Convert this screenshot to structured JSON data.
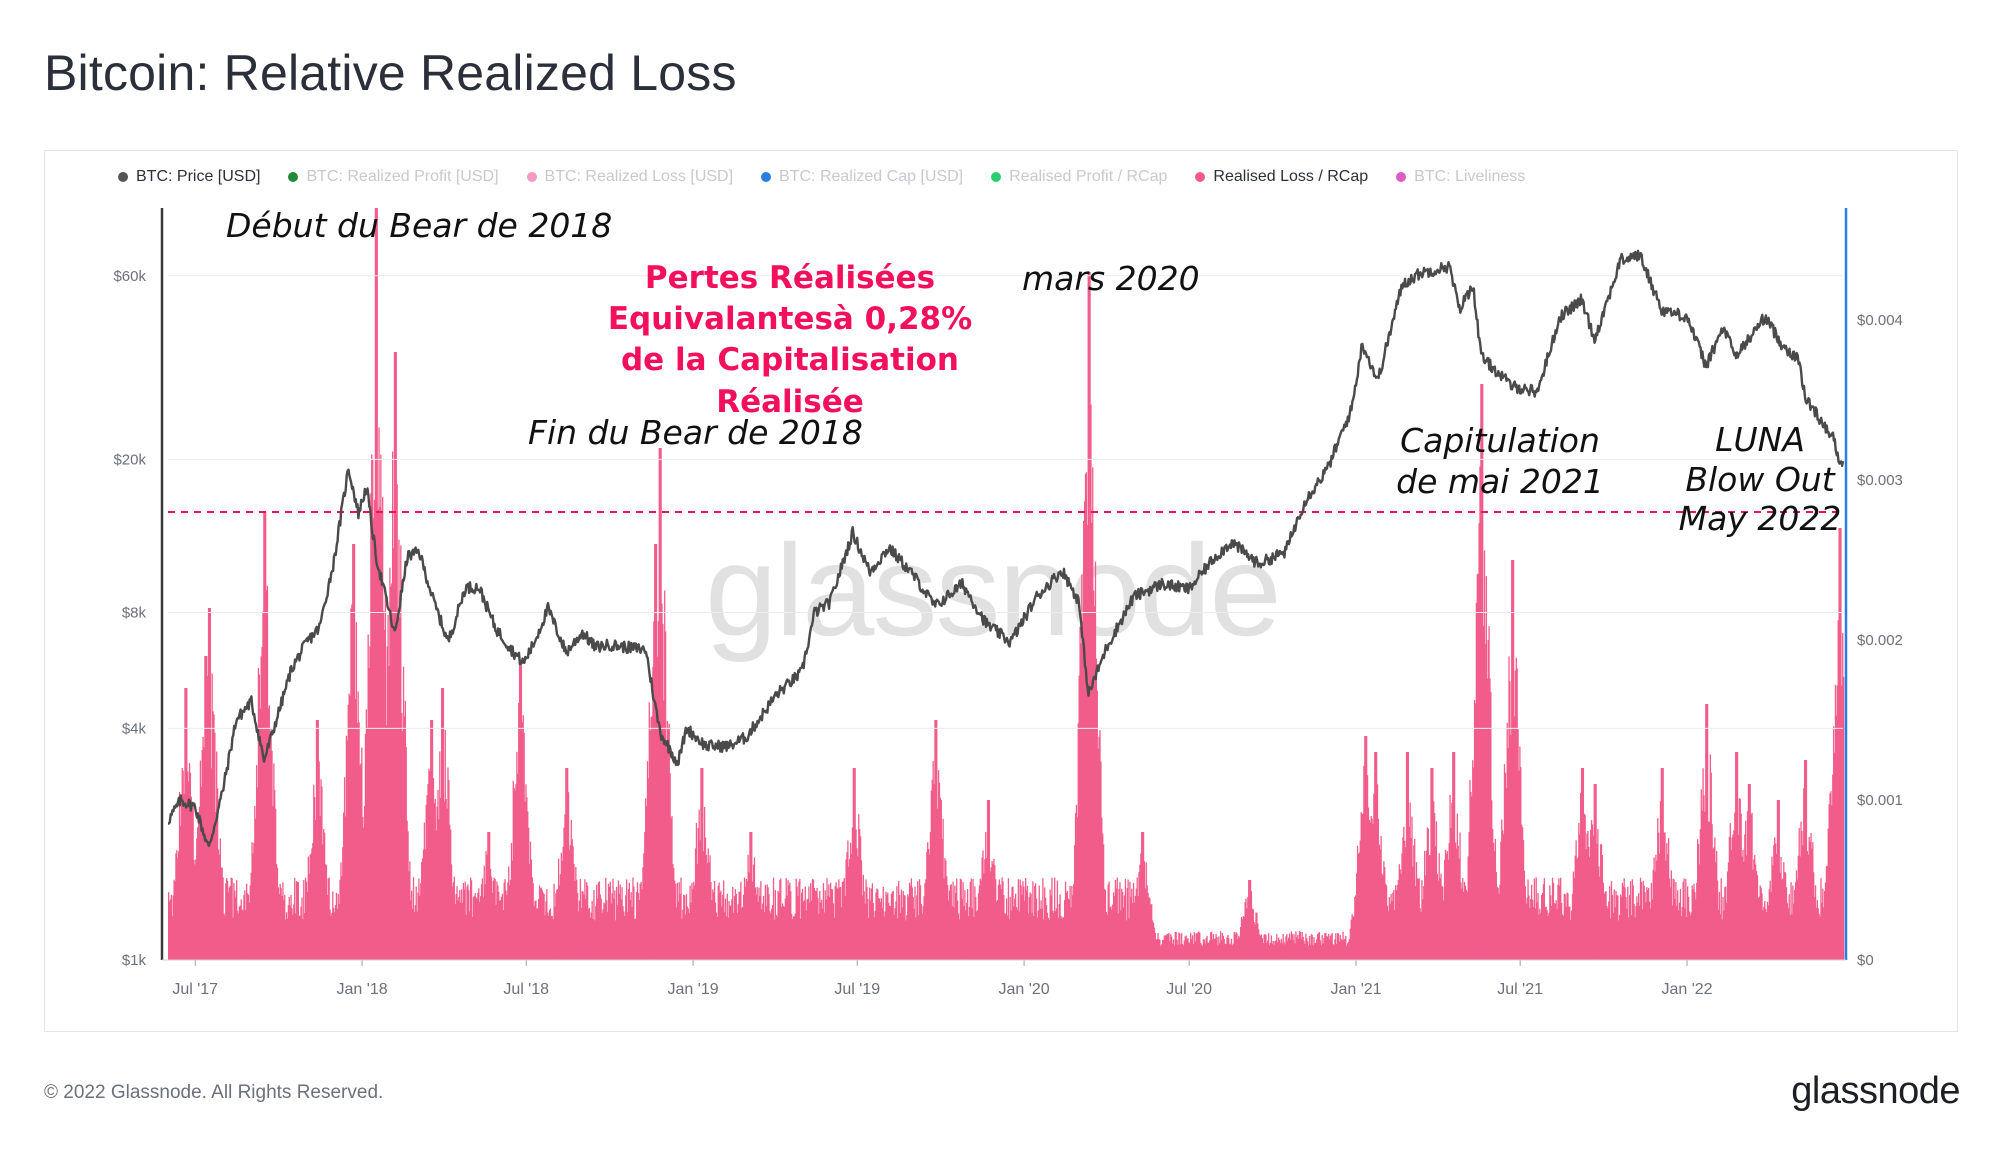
{
  "page": {
    "title": "Bitcoin: Relative Realized Loss",
    "copyright": "© 2022 Glassnode. All Rights Reserved.",
    "brand": "glassnode",
    "watermark": "glassnode"
  },
  "legend": [
    {
      "label": "BTC: Price [USD]",
      "color": "#555555",
      "active": true
    },
    {
      "label": "BTC: Realized Profit [USD]",
      "color": "#1f8a3a",
      "active": false
    },
    {
      "label": "BTC: Realized Loss [USD]",
      "color": "#f59ac0",
      "active": false
    },
    {
      "label": "BTC: Realized Cap [USD]",
      "color": "#2a7de1",
      "active": false
    },
    {
      "label": "Realised Profit / RCap",
      "color": "#2ecc71",
      "active": false
    },
    {
      "label": "Realised Loss / RCap",
      "color": "#f25c8a",
      "active": true
    },
    {
      "label": "BTC: Liveliness",
      "color": "#e05cc0",
      "active": false
    }
  ],
  "annotations": {
    "bear_start": "Début du Bear de 2018",
    "bear_end": "Fin du Bear de 2018",
    "march_2020": "mars 2020",
    "headline_line1": "Pertes Réalisées",
    "headline_line2": "Equivalantesà 0,28%",
    "headline_line3": "de la Capitalisation Réalisée",
    "cap_may_line1": "Capitulation",
    "cap_may_line2": "de mai 2021",
    "luna_line1": "LUNA",
    "luna_line2": "Blow Out",
    "luna_line3": "May 2022"
  },
  "chart_data": {
    "type": "line+bar",
    "title": "Bitcoin: Relative Realized Loss",
    "x_range": [
      "2017-06-01",
      "2022-06-22"
    ],
    "x_ticks": [
      {
        "date": "2017-07-01",
        "label": "Jul '17"
      },
      {
        "date": "2018-01-01",
        "label": "Jan '18"
      },
      {
        "date": "2018-07-01",
        "label": "Jul '18"
      },
      {
        "date": "2019-01-01",
        "label": "Jan '19"
      },
      {
        "date": "2019-07-01",
        "label": "Jul '19"
      },
      {
        "date": "2020-01-01",
        "label": "Jan '20"
      },
      {
        "date": "2020-07-01",
        "label": "Jul '20"
      },
      {
        "date": "2021-01-01",
        "label": "Jan '21"
      },
      {
        "date": "2021-07-01",
        "label": "Jul '21"
      },
      {
        "date": "2022-01-01",
        "label": "Jan '22"
      }
    ],
    "left_axis": {
      "scale": "log",
      "range": [
        1000,
        90000
      ],
      "ticks": [
        {
          "value": 1000,
          "label": "$1k"
        },
        {
          "value": 4000,
          "label": "$4k"
        },
        {
          "value": 8000,
          "label": "$8k"
        },
        {
          "value": 20000,
          "label": "$20k"
        },
        {
          "value": 60000,
          "label": "$60k"
        }
      ]
    },
    "right_axis": {
      "scale": "linear",
      "range": [
        0,
        0.0047
      ],
      "ticks": [
        {
          "value": 0,
          "label": "$0"
        },
        {
          "value": 0.001,
          "label": "$0.001"
        },
        {
          "value": 0.002,
          "label": "$0.002"
        },
        {
          "value": 0.003,
          "label": "$0.003"
        },
        {
          "value": 0.004,
          "label": "$0.004"
        }
      ]
    },
    "threshold": {
      "value": 0.0028,
      "color": "#f2105c",
      "style": "dashed"
    },
    "series": [
      {
        "name": "BTC: Price [USD]",
        "axis": "left",
        "color": "#4a4a4a",
        "points": [
          [
            "2017-06-01",
            2300
          ],
          [
            "2017-06-15",
            2600
          ],
          [
            "2017-07-01",
            2500
          ],
          [
            "2017-07-16",
            1950
          ],
          [
            "2017-08-01",
            2800
          ],
          [
            "2017-08-15",
            4200
          ],
          [
            "2017-09-01",
            4700
          ],
          [
            "2017-09-15",
            3300
          ],
          [
            "2017-10-01",
            4400
          ],
          [
            "2017-10-15",
            5700
          ],
          [
            "2017-11-01",
            6700
          ],
          [
            "2017-11-15",
            7300
          ],
          [
            "2017-12-01",
            10900
          ],
          [
            "2017-12-17",
            19000
          ],
          [
            "2017-12-28",
            14500
          ],
          [
            "2018-01-06",
            17000
          ],
          [
            "2018-01-16",
            11300
          ],
          [
            "2018-02-06",
            7000
          ],
          [
            "2018-02-20",
            11200
          ],
          [
            "2018-03-05",
            11500
          ],
          [
            "2018-03-20",
            8700
          ],
          [
            "2018-04-06",
            6700
          ],
          [
            "2018-04-25",
            9300
          ],
          [
            "2018-05-10",
            9300
          ],
          [
            "2018-05-28",
            7300
          ],
          [
            "2018-06-15",
            6400
          ],
          [
            "2018-06-28",
            5900
          ],
          [
            "2018-07-10",
            6700
          ],
          [
            "2018-07-25",
            8200
          ],
          [
            "2018-08-14",
            6300
          ],
          [
            "2018-09-01",
            7100
          ],
          [
            "2018-09-15",
            6500
          ],
          [
            "2018-10-01",
            6600
          ],
          [
            "2018-10-20",
            6500
          ],
          [
            "2018-11-10",
            6400
          ],
          [
            "2018-11-20",
            4600
          ],
          [
            "2018-11-26",
            3900
          ],
          [
            "2018-12-15",
            3250
          ],
          [
            "2018-12-25",
            4000
          ],
          [
            "2019-01-15",
            3600
          ],
          [
            "2019-02-10",
            3600
          ],
          [
            "2019-03-01",
            3800
          ],
          [
            "2019-04-03",
            4900
          ],
          [
            "2019-05-01",
            5600
          ],
          [
            "2019-05-15",
            8000
          ],
          [
            "2019-06-01",
            8500
          ],
          [
            "2019-06-26",
            12900
          ],
          [
            "2019-07-15",
            10200
          ],
          [
            "2019-08-05",
            11800
          ],
          [
            "2019-09-01",
            10000
          ],
          [
            "2019-09-25",
            8300
          ],
          [
            "2019-10-25",
            9500
          ],
          [
            "2019-11-20",
            7500
          ],
          [
            "2019-12-17",
            6700
          ],
          [
            "2020-01-15",
            8800
          ],
          [
            "2020-02-12",
            10300
          ],
          [
            "2020-03-01",
            8600
          ],
          [
            "2020-03-12",
            4900
          ],
          [
            "2020-04-01",
            6500
          ],
          [
            "2020-05-01",
            8800
          ],
          [
            "2020-06-01",
            9500
          ],
          [
            "2020-07-01",
            9200
          ],
          [
            "2020-07-27",
            11000
          ],
          [
            "2020-08-17",
            12200
          ],
          [
            "2020-09-15",
            10700
          ],
          [
            "2020-10-15",
            11500
          ],
          [
            "2020-11-05",
            15500
          ],
          [
            "2020-12-01",
            19000
          ],
          [
            "2020-12-27",
            27000
          ],
          [
            "2021-01-08",
            40000
          ],
          [
            "2021-01-25",
            32000
          ],
          [
            "2021-02-21",
            57000
          ],
          [
            "2021-03-13",
            61000
          ],
          [
            "2021-04-14",
            63500
          ],
          [
            "2021-04-25",
            49000
          ],
          [
            "2021-05-10",
            57000
          ],
          [
            "2021-05-19",
            37000
          ],
          [
            "2021-06-22",
            31000
          ],
          [
            "2021-07-20",
            30000
          ],
          [
            "2021-08-14",
            47000
          ],
          [
            "2021-09-07",
            52000
          ],
          [
            "2021-09-21",
            41000
          ],
          [
            "2021-10-20",
            66000
          ],
          [
            "2021-11-10",
            68000
          ],
          [
            "2021-12-04",
            49000
          ],
          [
            "2022-01-01",
            47000
          ],
          [
            "2022-01-22",
            35000
          ],
          [
            "2022-02-10",
            44000
          ],
          [
            "2022-02-24",
            37000
          ],
          [
            "2022-03-28",
            47000
          ],
          [
            "2022-04-15",
            40000
          ],
          [
            "2022-05-05",
            36000
          ],
          [
            "2022-05-11",
            29000
          ],
          [
            "2022-06-13",
            22500
          ],
          [
            "2022-06-18",
            19000
          ],
          [
            "2022-06-22",
            20000
          ]
        ]
      },
      {
        "name": "Realised Loss / RCap",
        "axis": "right",
        "color": "#f25c8a",
        "type": "bar",
        "baseline": 0.00045,
        "peaks": [
          [
            "2017-06-20",
            0.0017
          ],
          [
            "2017-07-12",
            0.0019
          ],
          [
            "2017-07-16",
            0.0022
          ],
          [
            "2017-09-15",
            0.0028
          ],
          [
            "2017-11-12",
            0.0015
          ],
          [
            "2017-12-22",
            0.0026
          ],
          [
            "2018-01-16",
            0.0047
          ],
          [
            "2018-02-06",
            0.0038
          ],
          [
            "2018-03-18",
            0.0015
          ],
          [
            "2018-03-30",
            0.0017
          ],
          [
            "2018-05-20",
            0.0008
          ],
          [
            "2018-06-24",
            0.00185
          ],
          [
            "2018-08-14",
            0.0012
          ],
          [
            "2018-11-20",
            0.0026
          ],
          [
            "2018-11-25",
            0.0032
          ],
          [
            "2019-01-10",
            0.0012
          ],
          [
            "2019-03-05",
            0.0008
          ],
          [
            "2019-06-27",
            0.0012
          ],
          [
            "2019-09-25",
            0.0015
          ],
          [
            "2019-11-22",
            0.001
          ],
          [
            "2020-03-12",
            0.0043
          ],
          [
            "2020-05-10",
            0.0008
          ],
          [
            "2020-09-05",
            0.0005
          ],
          [
            "2021-01-11",
            0.0014
          ],
          [
            "2021-01-22",
            0.0013
          ],
          [
            "2021-02-26",
            0.0013
          ],
          [
            "2021-03-25",
            0.0012
          ],
          [
            "2021-04-18",
            0.0013
          ],
          [
            "2021-05-19",
            0.0036
          ],
          [
            "2021-06-22",
            0.0025
          ],
          [
            "2021-09-07",
            0.0012
          ],
          [
            "2021-09-21",
            0.0011
          ],
          [
            "2021-12-04",
            0.0012
          ],
          [
            "2022-01-22",
            0.0016
          ],
          [
            "2022-02-24",
            0.0013
          ],
          [
            "2022-03-10",
            0.0011
          ],
          [
            "2022-04-11",
            0.001
          ],
          [
            "2022-05-11",
            0.00125
          ],
          [
            "2022-06-18",
            0.0027
          ]
        ]
      }
    ]
  }
}
